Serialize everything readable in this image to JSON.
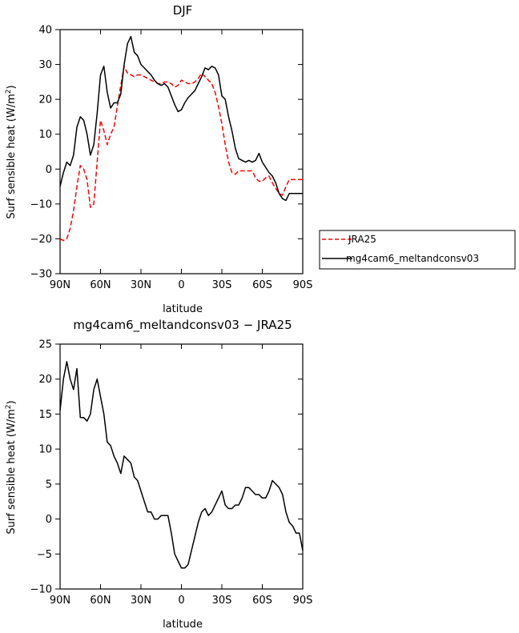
{
  "chart_data": [
    {
      "type": "line",
      "title": "DJF",
      "xlabel": "latitude",
      "ylabel": "Surf sensible heat (W/m²)",
      "ylabel_main": "Surf sensible heat (W/m",
      "ylabel_sup": "2",
      "ylabel_end": ")",
      "xlim": [
        90,
        -90
      ],
      "ylim": [
        -30,
        40
      ],
      "xticks": [
        90,
        60,
        30,
        0,
        -30,
        -60,
        -90
      ],
      "xtick_labels": [
        "90N",
        "60N",
        "30N",
        "0",
        "30S",
        "60S",
        "90S"
      ],
      "yticks": [
        -30,
        -20,
        -10,
        0,
        10,
        20,
        30,
        40
      ],
      "ytick_labels": [
        "−30",
        "−20",
        "−10",
        "0",
        "10",
        "20",
        "30",
        "40"
      ],
      "legend_placement": "outside-right",
      "series": [
        {
          "name": "JRA25",
          "color": "#ff0000",
          "dash": "dashed",
          "x": [
            90,
            87.5,
            85,
            82.5,
            80,
            77.5,
            75,
            72.5,
            70,
            67.5,
            65,
            62.5,
            60,
            57.5,
            55,
            52.5,
            50,
            47.5,
            45,
            42.5,
            40,
            37.5,
            35,
            32.5,
            30,
            27.5,
            25,
            22.5,
            20,
            17.5,
            15,
            12.5,
            10,
            7.5,
            5,
            2.5,
            0,
            -2.5,
            -5,
            -7.5,
            -10,
            -12.5,
            -15,
            -17.5,
            -20,
            -22.5,
            -25,
            -27.5,
            -30,
            -32.5,
            -35,
            -37.5,
            -40,
            -42.5,
            -45,
            -47.5,
            -50,
            -52.5,
            -55,
            -57.5,
            -60,
            -62.5,
            -65,
            -67.5,
            -70,
            -72.5,
            -75,
            -77.5,
            -80,
            -82.5,
            -85,
            -87.5,
            -90
          ],
          "values": [
            -20,
            -20.5,
            -20,
            -17,
            -12,
            -5,
            1,
            0,
            -3,
            -11,
            -10,
            2,
            14,
            11,
            7,
            10,
            12,
            18,
            24,
            29.5,
            27.5,
            27,
            26.5,
            27,
            27,
            26.5,
            26,
            25.5,
            25,
            24.5,
            24.5,
            25,
            25,
            24.5,
            23.5,
            24,
            25.5,
            25,
            24.5,
            24.5,
            25,
            26,
            27.5,
            26.5,
            25.5,
            24.5,
            22,
            18,
            13,
            7,
            2,
            -1,
            -1.5,
            -0.5,
            -0.5,
            -0.5,
            -0.5,
            -0.5,
            -2.5,
            -3.5,
            -3.5,
            -2.5,
            -2,
            -4,
            -5.5,
            -7,
            -7.5,
            -5,
            -3,
            -3,
            -3,
            -3,
            -3
          ]
        },
        {
          "name": "mg4cam6_meltandconsv03",
          "color": "#000000",
          "dash": "solid",
          "x": [
            90,
            87.5,
            85,
            82.5,
            80,
            77.5,
            75,
            72.5,
            70,
            67.5,
            65,
            62.5,
            60,
            57.5,
            55,
            52.5,
            50,
            47.5,
            45,
            42.5,
            40,
            37.5,
            35,
            32.5,
            30,
            27.5,
            25,
            22.5,
            20,
            17.5,
            15,
            12.5,
            10,
            7.5,
            5,
            2.5,
            0,
            -2.5,
            -5,
            -7.5,
            -10,
            -12.5,
            -15,
            -17.5,
            -20,
            -22.5,
            -25,
            -27.5,
            -30,
            -32.5,
            -35,
            -37.5,
            -40,
            -42.5,
            -45,
            -47.5,
            -50,
            -52.5,
            -55,
            -57.5,
            -60,
            -62.5,
            -65,
            -67.5,
            -70,
            -72.5,
            -75,
            -77.5,
            -80,
            -82.5,
            -85,
            -87.5,
            -90
          ],
          "values": [
            -5,
            -1,
            2,
            1,
            4,
            12,
            15,
            14,
            10,
            4,
            7,
            16,
            27,
            29.5,
            22,
            17.5,
            19,
            19,
            21.5,
            30,
            36,
            38,
            33.5,
            32.5,
            30,
            29,
            28,
            27,
            25.5,
            24.5,
            24,
            24.5,
            23.5,
            21,
            18.5,
            16.5,
            17,
            19,
            20.5,
            21.5,
            22.5,
            24.5,
            26.5,
            29,
            28.5,
            29.5,
            29,
            27,
            21,
            20,
            15,
            11,
            6,
            3,
            2.5,
            2,
            2.5,
            2,
            2.5,
            4.5,
            2,
            0.5,
            -1,
            -2,
            -4,
            -7,
            -8.5,
            -9,
            -7,
            -7,
            -7,
            -7,
            -7
          ]
        }
      ]
    },
    {
      "type": "line",
      "title": "mg4cam6_meltandconsv03 − JRA25",
      "xlabel": "latitude",
      "ylabel": "Surf sensible heat (W/m²)",
      "ylabel_main": "Surf sensible heat (W/m",
      "ylabel_sup": "2",
      "ylabel_end": ")",
      "xlim": [
        90,
        -90
      ],
      "ylim": [
        -10,
        25
      ],
      "xticks": [
        90,
        60,
        30,
        0,
        -30,
        -60,
        -90
      ],
      "xtick_labels": [
        "90N",
        "60N",
        "30N",
        "0",
        "30S",
        "60S",
        "90S"
      ],
      "yticks": [
        -10,
        -5,
        0,
        5,
        10,
        15,
        20,
        25
      ],
      "ytick_labels": [
        "−10",
        "−5",
        "0",
        "5",
        "10",
        "15",
        "20",
        "25"
      ],
      "series": [
        {
          "name": "",
          "color": "#000000",
          "dash": "solid",
          "x": [
            90,
            87.5,
            85,
            82.5,
            80,
            77.5,
            75,
            72.5,
            70,
            67.5,
            65,
            62.5,
            60,
            57.5,
            55,
            52.5,
            50,
            47.5,
            45,
            42.5,
            40,
            37.5,
            35,
            32.5,
            30,
            27.5,
            25,
            22.5,
            20,
            17.5,
            15,
            12.5,
            10,
            7.5,
            5,
            2.5,
            0,
            -2.5,
            -5,
            -7.5,
            -10,
            -12.5,
            -15,
            -17.5,
            -20,
            -22.5,
            -25,
            -27.5,
            -30,
            -32.5,
            -35,
            -37.5,
            -40,
            -42.5,
            -45,
            -47.5,
            -50,
            -52.5,
            -55,
            -57.5,
            -60,
            -62.5,
            -65,
            -67.5,
            -70,
            -72.5,
            -75,
            -77.5,
            -80,
            -82.5,
            -85,
            -87.5,
            -90
          ],
          "values": [
            15.5,
            20,
            22.5,
            20,
            18.5,
            21.5,
            14.5,
            14.5,
            14,
            15,
            18.5,
            20,
            17.5,
            15,
            11,
            10.5,
            9,
            8,
            6.5,
            9,
            8.5,
            8,
            6,
            5.5,
            4,
            2.5,
            1,
            1,
            0,
            0,
            0.5,
            0.5,
            0.5,
            -2,
            -5,
            -6,
            -7,
            -7,
            -6.5,
            -4.5,
            -2.5,
            -0.5,
            1,
            1.5,
            0.5,
            1,
            2,
            3,
            4,
            2,
            1.5,
            1.5,
            2,
            2,
            3,
            4.5,
            4.5,
            4,
            3.5,
            3.5,
            3,
            3,
            4,
            5.5,
            5,
            4.5,
            3.5,
            1,
            -0.5,
            -1,
            -2,
            -2,
            -4.5
          ]
        }
      ]
    }
  ],
  "legend": {
    "entries": [
      {
        "label": "JRA25",
        "color": "#ff0000",
        "dash": "dashed"
      },
      {
        "label": "mg4cam6_meltandconsv03",
        "color": "#000000",
        "dash": "solid"
      }
    ]
  }
}
